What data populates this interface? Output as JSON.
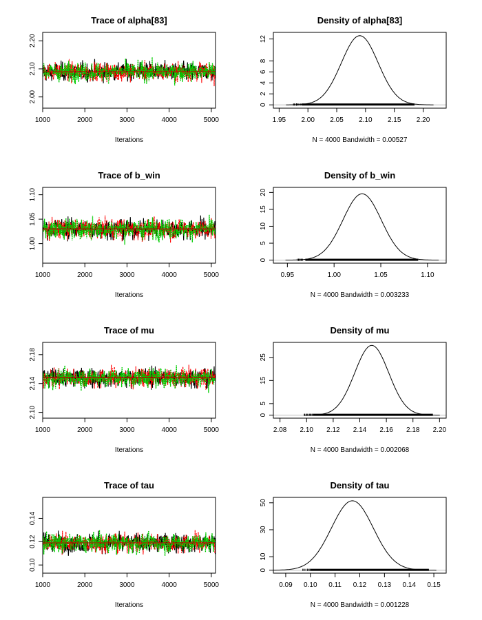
{
  "chart_data": [
    {
      "type": "line",
      "title": "Trace of alpha[83]",
      "xlabel": "Iterations",
      "xlim": [
        1000,
        5100
      ],
      "ylim": [
        1.96,
        2.23
      ],
      "xticks": [
        1000,
        2000,
        3000,
        4000,
        5000
      ],
      "yticks": [
        2.0,
        2.1,
        2.2
      ],
      "ytick_labels": [
        "2.00",
        "2.10",
        "2.20"
      ],
      "x_range": [
        1001,
        5100
      ],
      "series": [
        {
          "color": "#000000",
          "mean": 2.09,
          "spread": 0.032
        },
        {
          "color": "#ff0000",
          "mean": 2.09,
          "spread": 0.032
        },
        {
          "color": "#00cc00",
          "mean": 2.09,
          "spread": 0.032
        }
      ]
    },
    {
      "type": "line",
      "title": "Density of alpha[83]",
      "xlabel": "N = 4000   Bandwidth = 0.00527",
      "xlim": [
        1.94,
        2.24
      ],
      "ylim": [
        -0.6,
        13.2
      ],
      "xticks": [
        1.95,
        2.0,
        2.05,
        2.1,
        2.15,
        2.2
      ],
      "xtick_labels": [
        "1.95",
        "2.00",
        "2.05",
        "2.10",
        "2.15",
        "2.20"
      ],
      "yticks": [
        0,
        2,
        4,
        6,
        8,
        12
      ],
      "ytick_labels": [
        "0",
        "2",
        "4",
        "6",
        "8",
        "12"
      ],
      "peak_x": 2.09,
      "peak_y": 12.6,
      "sd": 0.032,
      "rug": [
        1.99,
        2.185
      ]
    },
    {
      "type": "line",
      "title": "Trace of b_win",
      "xlabel": "Iterations",
      "xlim": [
        1000,
        5100
      ],
      "ylim": [
        0.96,
        1.115
      ],
      "xticks": [
        1000,
        2000,
        3000,
        4000,
        5000
      ],
      "yticks": [
        1.0,
        1.05,
        1.1
      ],
      "ytick_labels": [
        "1.00",
        "1.05",
        "1.10"
      ],
      "x_range": [
        1001,
        5100
      ],
      "series": [
        {
          "color": "#000000",
          "mean": 1.03,
          "spread": 0.02
        },
        {
          "color": "#ff0000",
          "mean": 1.03,
          "spread": 0.02
        },
        {
          "color": "#00cc00",
          "mean": 1.03,
          "spread": 0.02
        }
      ]
    },
    {
      "type": "line",
      "title": "Density of b_win",
      "xlabel": "N = 4000   Bandwidth = 0.003233",
      "xlim": [
        0.935,
        1.12
      ],
      "ylim": [
        -0.9,
        21.5
      ],
      "xticks": [
        0.95,
        1.0,
        1.05,
        1.1
      ],
      "xtick_labels": [
        "0.95",
        "1.00",
        "1.05",
        "1.10"
      ],
      "yticks": [
        0,
        5,
        10,
        15,
        20
      ],
      "ytick_labels": [
        "0",
        "5",
        "10",
        "15",
        "20"
      ],
      "peak_x": 1.03,
      "peak_y": 19.6,
      "sd": 0.0205,
      "rug": [
        0.97,
        1.09
      ]
    },
    {
      "type": "line",
      "title": "Trace of mu",
      "xlabel": "Iterations",
      "xlim": [
        1000,
        5100
      ],
      "ylim": [
        2.092,
        2.197
      ],
      "xticks": [
        1000,
        2000,
        3000,
        4000,
        5000
      ],
      "yticks": [
        2.1,
        2.14,
        2.18
      ],
      "ytick_labels": [
        "2.10",
        "2.14",
        "2.18"
      ],
      "x_range": [
        1001,
        5100
      ],
      "series": [
        {
          "color": "#000000",
          "mean": 2.148,
          "spread": 0.013
        },
        {
          "color": "#ff0000",
          "mean": 2.148,
          "spread": 0.013
        },
        {
          "color": "#00cc00",
          "mean": 2.148,
          "spread": 0.013
        }
      ]
    },
    {
      "type": "line",
      "title": "Density of mu",
      "xlabel": "N = 4000   Bandwidth = 0.002068",
      "xlim": [
        2.075,
        2.205
      ],
      "ylim": [
        -1.3,
        31.5
      ],
      "xticks": [
        2.08,
        2.1,
        2.12,
        2.14,
        2.16,
        2.18,
        2.2
      ],
      "xtick_labels": [
        "2.08",
        "2.10",
        "2.12",
        "2.14",
        "2.16",
        "2.18",
        "2.20"
      ],
      "yticks": [
        0,
        5,
        15,
        25
      ],
      "ytick_labels": [
        "0",
        "5",
        "15",
        "25"
      ],
      "peak_x": 2.149,
      "peak_y": 30.2,
      "sd": 0.0128,
      "rug": [
        2.105,
        2.195
      ]
    },
    {
      "type": "line",
      "title": "Trace of tau",
      "xlabel": "Iterations",
      "xlim": [
        1000,
        5100
      ],
      "ylim": [
        0.093,
        0.158
      ],
      "xticks": [
        1000,
        2000,
        3000,
        4000,
        5000
      ],
      "yticks": [
        0.1,
        0.12,
        0.14
      ],
      "ytick_labels": [
        "0.10",
        "0.12",
        "0.14"
      ],
      "x_range": [
        1001,
        5100
      ],
      "series": [
        {
          "color": "#000000",
          "mean": 0.119,
          "spread": 0.008
        },
        {
          "color": "#ff0000",
          "mean": 0.119,
          "spread": 0.008
        },
        {
          "color": "#00cc00",
          "mean": 0.119,
          "spread": 0.008
        }
      ]
    },
    {
      "type": "line",
      "title": "Density of tau",
      "xlabel": "N = 4000   Bandwidth = 0.001228",
      "xlim": [
        0.085,
        0.155
      ],
      "ylim": [
        -2.2,
        54
      ],
      "xticks": [
        0.09,
        0.1,
        0.11,
        0.12,
        0.13,
        0.14,
        0.15
      ],
      "xtick_labels": [
        "0.09",
        "0.10",
        "0.11",
        "0.12",
        "0.13",
        "0.14",
        "0.15"
      ],
      "yticks": [
        0,
        10,
        30,
        50
      ],
      "ytick_labels": [
        "0",
        "10",
        "30",
        "50"
      ],
      "peak_x": 0.117,
      "peak_y": 51.5,
      "sd": 0.0085,
      "rug": [
        0.1,
        0.148
      ]
    }
  ]
}
